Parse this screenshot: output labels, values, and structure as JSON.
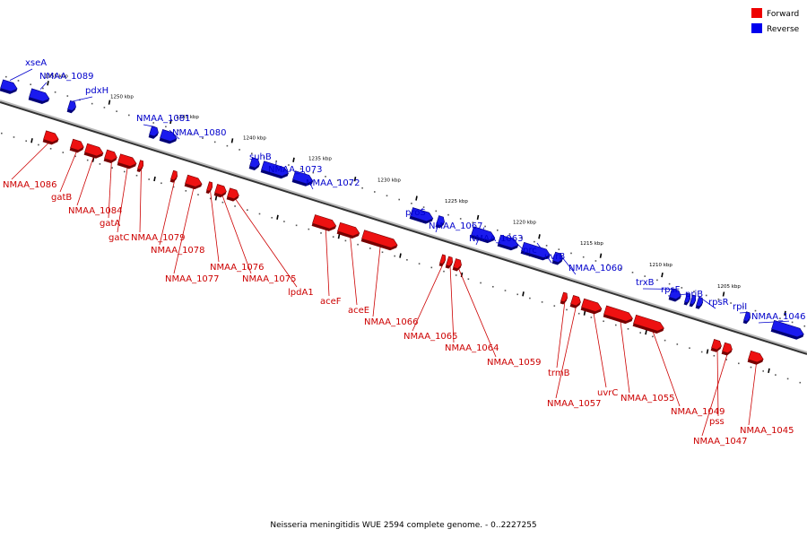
{
  "legend": {
    "forward_label": "Forward",
    "reverse_label": "Reverse",
    "forward_color": "#ee0000",
    "reverse_color": "#0000ee"
  },
  "caption": "Neisseria meningitidis WUE 2594 complete genome. - 0..2227255",
  "scale_labels": [
    "1255 kbp",
    "1250 kbp",
    "1245 kbp",
    "1240 kbp",
    "1235 kbp",
    "1230 kbp",
    "1225 kbp",
    "1220 kbp",
    "1215 kbp",
    "1210 kbp",
    "1205 kbp"
  ],
  "reverse_genes": [
    "xseA",
    "NMAA_1089",
    "pdxH",
    "NMAA_1081",
    "NMAA_1080",
    "suhB",
    "NMAA_1073",
    "NMAA_1072",
    "proS",
    "NMAA_1067",
    "NMAA_1063",
    "prc",
    "uvrB",
    "NMAA_1060",
    "trxB",
    "rpsF",
    "priB",
    "rpsR",
    "rplI",
    "NMAA_1046"
  ],
  "forward_genes": [
    "NMAA_1086",
    "gatB",
    "NMAA_1084",
    "gatA",
    "gatC",
    "NMAA_1079",
    "NMAA_1078",
    "NMAA_1077",
    "NMAA_1076",
    "NMAA_1075",
    "lpdA1",
    "aceF",
    "aceE",
    "NMAA_1066",
    "NMAA_1065",
    "NMAA_1064",
    "NMAA_1059",
    "trmB",
    "NMAA_1057",
    "uvrC",
    "NMAA_1055",
    "NMAA_1049",
    "pss",
    "NMAA_1047",
    "NMAA_1045"
  ]
}
